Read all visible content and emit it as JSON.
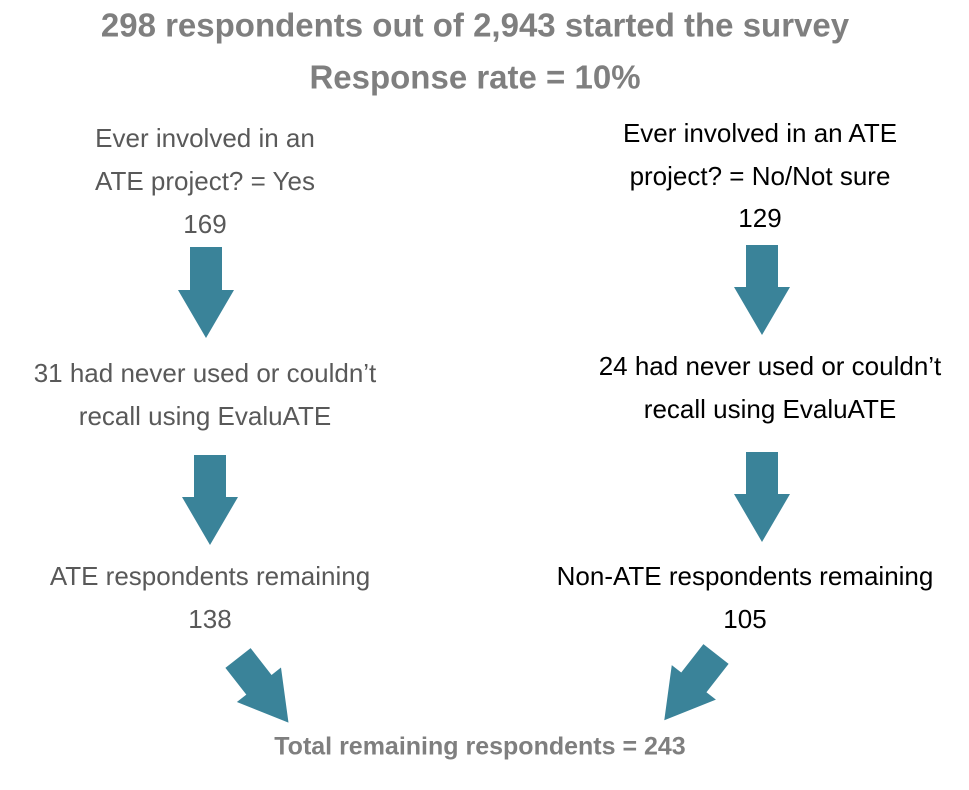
{
  "header": {
    "title": [
      "298 respondents out of 2,943 started the survey",
      "Response rate = 10%"
    ]
  },
  "left": {
    "step1": [
      "Ever involved in an",
      "ATE project? = Yes",
      "169"
    ],
    "step2": [
      "31 had never used or couldn’t",
      "recall using EvaluATE"
    ],
    "step3": [
      "ATE respondents remaining",
      "138"
    ]
  },
  "right": {
    "step1": [
      "Ever involved in an ATE",
      "project? = No/Not sure",
      "129"
    ],
    "step2": [
      "24 had never used or couldn’t",
      "recall using EvaluATE"
    ],
    "step3": [
      "Non-ATE respondents remaining",
      "105"
    ]
  },
  "footer": {
    "total": "Total remaining respondents = 243"
  }
}
